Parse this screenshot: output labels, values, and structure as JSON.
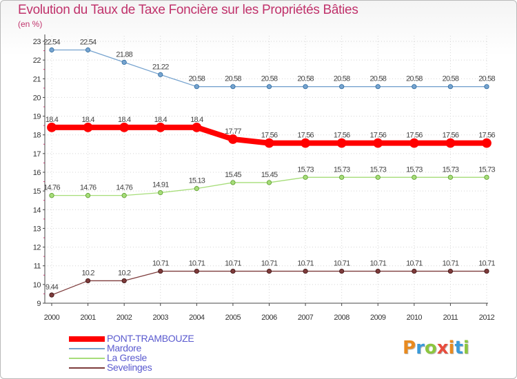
{
  "title": "Evolution du Taux de Taxe Foncière sur les Propriétés Bâties",
  "unit": "(en %)",
  "logo_text": "Proxiti",
  "chart_data": {
    "type": "line",
    "title": "Evolution du Taux de Taxe Foncière sur les Propriétés Bâties",
    "ylabel": "(en %)",
    "xlabel": "",
    "ylim": [
      9,
      23
    ],
    "yticks": [
      "9",
      "10",
      "11",
      "12",
      "13",
      "14",
      "15",
      "16",
      "17",
      "18",
      "19",
      "20",
      "21",
      "22",
      "23"
    ],
    "x": [
      "2000",
      "2001",
      "2002",
      "2003",
      "2004",
      "2005",
      "2006",
      "2007",
      "2008",
      "2009",
      "2010",
      "2011",
      "2012"
    ],
    "series": [
      {
        "name": "PONT-TRAMBOUZE",
        "color": "#ff0000",
        "values": [
          18.4,
          18.4,
          18.4,
          18.4,
          18.4,
          17.77,
          17.56,
          17.56,
          17.56,
          17.56,
          17.56,
          17.56,
          17.56
        ],
        "labels": [
          "18.4",
          "18.4",
          "18.4",
          "18.4",
          "18.4",
          "17.77",
          "17.56",
          "17.56",
          "17.56",
          "17.56",
          "17.56",
          "17.56",
          "17.56"
        ]
      },
      {
        "name": "Mardore",
        "color": "#76a3cf",
        "values": [
          22.54,
          22.54,
          21.88,
          21.22,
          20.58,
          20.58,
          20.58,
          20.58,
          20.58,
          20.58,
          20.58,
          20.58,
          20.58
        ],
        "labels": [
          "22.54",
          "22.54",
          "21.88",
          "21.22",
          "20.58",
          "20.58",
          "20.58",
          "20.58",
          "20.58",
          "20.58",
          "20.58",
          "20.58",
          "20.58"
        ]
      },
      {
        "name": "La Gresle",
        "color": "#a6dd79",
        "values": [
          14.76,
          14.76,
          14.76,
          14.91,
          15.13,
          15.45,
          15.45,
          15.73,
          15.73,
          15.73,
          15.73,
          15.73,
          15.73
        ],
        "labels": [
          "14.76",
          "14.76",
          "14.76",
          "14.91",
          "15.13",
          "15.45",
          "15.45",
          "15.73",
          "15.73",
          "15.73",
          "15.73",
          "15.73",
          "15.73"
        ]
      },
      {
        "name": "Sevelinges",
        "color": "#7d3b3b",
        "values": [
          9.44,
          10.2,
          10.2,
          10.71,
          10.71,
          10.71,
          10.71,
          10.71,
          10.71,
          10.71,
          10.71,
          10.71,
          10.71
        ],
        "labels": [
          "9.44",
          "10.2",
          "10.2",
          "10.71",
          "10.71",
          "10.71",
          "10.71",
          "10.71",
          "10.71",
          "10.71",
          "10.71",
          "10.71",
          "10.71"
        ]
      }
    ]
  }
}
